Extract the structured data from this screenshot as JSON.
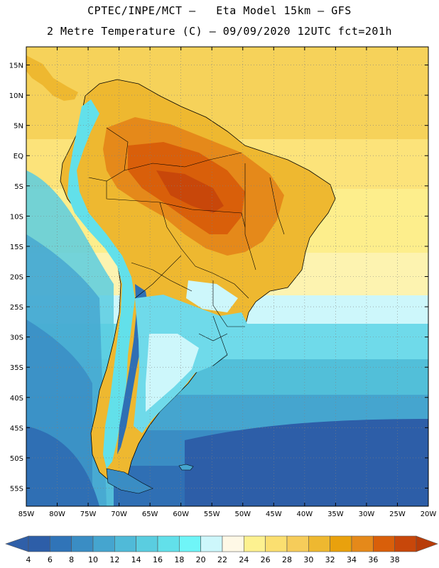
{
  "header": {
    "line1": "CPTEC/INPE/MCT –   Eta Model 15km – GFS",
    "line2": "2 Metre Temperature (C) – 09/09/2020 12UTC fct=201h"
  },
  "map": {
    "variable": "2 Metre Temperature",
    "units": "C",
    "lon_range": [
      -85,
      -20
    ],
    "lat_range": [
      -58,
      18
    ],
    "lat_ticks": [
      {
        "value": 15,
        "label": "15N"
      },
      {
        "value": 10,
        "label": "10N"
      },
      {
        "value": 5,
        "label": "5N"
      },
      {
        "value": 0,
        "label": "EQ"
      },
      {
        "value": -5,
        "label": "5S"
      },
      {
        "value": -10,
        "label": "10S"
      },
      {
        "value": -15,
        "label": "15S"
      },
      {
        "value": -20,
        "label": "20S"
      },
      {
        "value": -25,
        "label": "25S"
      },
      {
        "value": -30,
        "label": "30S"
      },
      {
        "value": -35,
        "label": "35S"
      },
      {
        "value": -40,
        "label": "40S"
      },
      {
        "value": -45,
        "label": "45S"
      },
      {
        "value": -50,
        "label": "50S"
      },
      {
        "value": -55,
        "label": "55S"
      }
    ],
    "lon_ticks": [
      {
        "value": -85,
        "label": "85W"
      },
      {
        "value": -80,
        "label": "80W"
      },
      {
        "value": -75,
        "label": "75W"
      },
      {
        "value": -70,
        "label": "70W"
      },
      {
        "value": -65,
        "label": "65W"
      },
      {
        "value": -60,
        "label": "60W"
      },
      {
        "value": -55,
        "label": "55W"
      },
      {
        "value": -50,
        "label": "50W"
      },
      {
        "value": -45,
        "label": "45W"
      },
      {
        "value": -40,
        "label": "40W"
      },
      {
        "value": -35,
        "label": "35W"
      },
      {
        "value": -30,
        "label": "30W"
      },
      {
        "value": -25,
        "label": "25W"
      },
      {
        "value": -20,
        "label": "20W"
      }
    ]
  },
  "colorbar": {
    "below_color": "#2f5fa8",
    "above_color": "#b83c08",
    "bins": [
      {
        "label": "4",
        "color": "#2d5ea8"
      },
      {
        "label": "6",
        "color": "#3074b8"
      },
      {
        "label": "8",
        "color": "#3a8dc4"
      },
      {
        "label": "10",
        "color": "#45a5cf"
      },
      {
        "label": "12",
        "color": "#50bad8"
      },
      {
        "label": "14",
        "color": "#5acde0"
      },
      {
        "label": "16",
        "color": "#62e0ea"
      },
      {
        "label": "18",
        "color": "#6ff5f8"
      },
      {
        "label": "20",
        "color": "#cdf7fb"
      },
      {
        "label": "22",
        "color": "#fef8e6"
      },
      {
        "label": "24",
        "color": "#fdf190"
      },
      {
        "label": "26",
        "color": "#fbdf70"
      },
      {
        "label": "28",
        "color": "#f6cc5a"
      },
      {
        "label": "30",
        "color": "#eeb830"
      },
      {
        "label": "32",
        "color": "#e9a10d"
      },
      {
        "label": "34",
        "color": "#e5891a"
      },
      {
        "label": "36",
        "color": "#d95f0a"
      },
      {
        "label": "38",
        "color": "#c8470a"
      }
    ],
    "end_labels": [
      "4",
      "6",
      "8",
      "10",
      "12",
      "14",
      "16",
      "18",
      "20",
      "22",
      "24",
      "26",
      "28",
      "30",
      "32",
      "34",
      "36",
      "38"
    ]
  }
}
